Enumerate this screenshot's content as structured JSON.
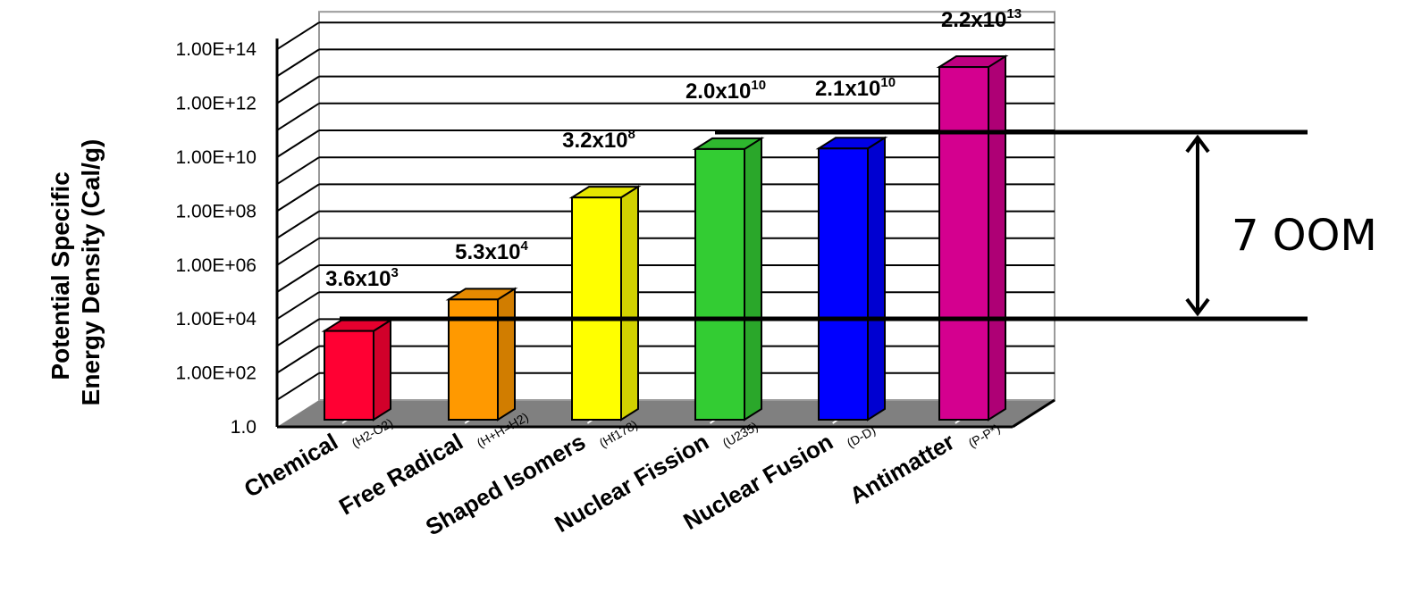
{
  "chart_data": {
    "type": "bar",
    "three_d": true,
    "ylabel": [
      "Potential Specific",
      "Energy Density (Cal/g)"
    ],
    "xlabel": "",
    "yscale": "log",
    "ylim": [
      1,
      100000000000000
    ],
    "y_tick_labels": [
      "1.0",
      "1.00E+02",
      "1.00E+04",
      "1.00E+06",
      "1.00E+08",
      "1.00E+10",
      "1.00E+12",
      "1.00E+14"
    ],
    "grid": true,
    "categories": [
      {
        "name": "Chemical",
        "sub": "(H2-O2)"
      },
      {
        "name": "Free Radical",
        "sub": "(H+H=H2)"
      },
      {
        "name": "Shaped Isomers",
        "sub": "(Hf178)"
      },
      {
        "name": "Nuclear Fission",
        "sub": "(U235)"
      },
      {
        "name": "Nuclear Fusion",
        "sub": "(D-D)"
      },
      {
        "name": "Antimatter",
        "sub": "(P-P*)"
      }
    ],
    "values": [
      3600,
      53000,
      320000000,
      20000000000,
      21000000000,
      22000000000000
    ],
    "data_labels": [
      {
        "base": "3.6x10",
        "exp": "3"
      },
      {
        "base": "5.3x10",
        "exp": "4"
      },
      {
        "base": "3.2x10",
        "exp": "8"
      },
      {
        "base": "2.0x10",
        "exp": "10"
      },
      {
        "base": "2.1x10",
        "exp": "10"
      },
      {
        "base": "2.2x10",
        "exp": "13"
      }
    ],
    "colors": [
      "#ff0033",
      "#ff9900",
      "#ffff00",
      "#33cc33",
      "#0000ff",
      "#d4008f"
    ],
    "annotation": {
      "text": "7 OOM",
      "from": 3600,
      "to": 20000000000
    }
  }
}
